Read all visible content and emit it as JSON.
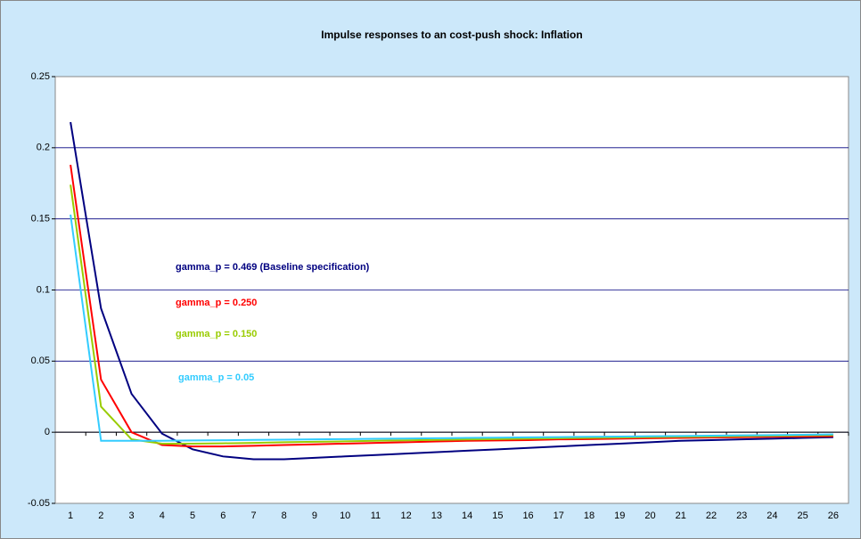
{
  "chart_data": {
    "type": "line",
    "title": "Impulse responses to an cost-push shock: Inflation",
    "categories": [
      1,
      2,
      3,
      4,
      5,
      6,
      7,
      8,
      9,
      10,
      11,
      12,
      13,
      14,
      15,
      16,
      17,
      18,
      19,
      20,
      21,
      22,
      23,
      24,
      25,
      26
    ],
    "series": [
      {
        "name": "gamma_p = 0.469 (Baseline specification)",
        "color": "#000080",
        "values": [
          0.218,
          0.087,
          0.027,
          -0.001,
          -0.012,
          -0.017,
          -0.019,
          -0.019,
          -0.018,
          -0.017,
          -0.016,
          -0.015,
          -0.014,
          -0.013,
          -0.012,
          -0.011,
          -0.01,
          -0.009,
          -0.008,
          -0.007,
          -0.006,
          -0.0055,
          -0.005,
          -0.0045,
          -0.004,
          -0.0035
        ]
      },
      {
        "name": "gamma_p = 0.250",
        "color": "#ff0000",
        "values": [
          0.188,
          0.037,
          0.0,
          -0.009,
          -0.01,
          -0.01,
          -0.0095,
          -0.009,
          -0.0085,
          -0.008,
          -0.0075,
          -0.007,
          -0.0065,
          -0.006,
          -0.0058,
          -0.0055,
          -0.005,
          -0.0048,
          -0.0045,
          -0.0042,
          -0.004,
          -0.0037,
          -0.0035,
          -0.0032,
          -0.003,
          -0.0028
        ]
      },
      {
        "name": "gamma_p = 0.150",
        "color": "#99cc00",
        "values": [
          0.174,
          0.018,
          -0.005,
          -0.008,
          -0.008,
          -0.0078,
          -0.0075,
          -0.007,
          -0.0067,
          -0.0064,
          -0.006,
          -0.0057,
          -0.0054,
          -0.0051,
          -0.0048,
          -0.0045,
          -0.0042,
          -0.004,
          -0.0037,
          -0.0034,
          -0.0032,
          -0.003,
          -0.0027,
          -0.0025,
          -0.0022,
          -0.002
        ]
      },
      {
        "name": "gamma_p = 0.05",
        "color": "#33ccff",
        "values": [
          0.153,
          -0.006,
          -0.006,
          -0.006,
          -0.0058,
          -0.0056,
          -0.0054,
          -0.0052,
          -0.005,
          -0.0048,
          -0.0046,
          -0.0044,
          -0.0042,
          -0.004,
          -0.0038,
          -0.0036,
          -0.0034,
          -0.0032,
          -0.003,
          -0.0028,
          -0.0026,
          -0.0024,
          -0.0022,
          -0.002,
          -0.0018,
          -0.0015
        ]
      }
    ],
    "ylim": [
      -0.05,
      0.25
    ],
    "yticks": [
      -0.05,
      0,
      0.05,
      0.1,
      0.15,
      0.2,
      0.25
    ],
    "grid": true
  }
}
